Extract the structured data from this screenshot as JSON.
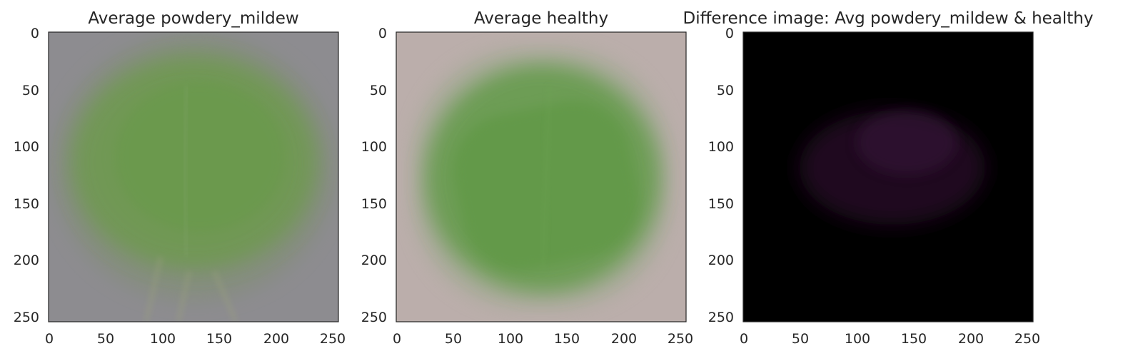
{
  "chart_data": [
    {
      "type": "image",
      "title": "Average powdery_mildew",
      "xlim": [
        0,
        255
      ],
      "ylim": [
        255,
        0
      ],
      "xticks": [
        0,
        50,
        100,
        150,
        200,
        250
      ],
      "yticks": [
        0,
        50,
        100,
        150,
        200,
        250
      ],
      "background_color": "#8d8c90",
      "subject_color": "#6e9a50",
      "grid": false
    },
    {
      "type": "image",
      "title": "Average healthy",
      "xlim": [
        0,
        255
      ],
      "ylim": [
        255,
        0
      ],
      "xticks": [
        0,
        50,
        100,
        150,
        200,
        250
      ],
      "yticks": [
        0,
        50,
        100,
        150,
        200,
        250
      ],
      "background_color": "#bbaeab",
      "subject_color": "#5f9a45",
      "grid": false
    },
    {
      "type": "image",
      "title": "Difference image: Avg powdery_mildew & healthy",
      "xlim": [
        0,
        255
      ],
      "ylim": [
        255,
        0
      ],
      "xticks": [
        0,
        50,
        100,
        150,
        200,
        250
      ],
      "yticks": [
        0,
        50,
        100,
        150,
        200,
        250
      ],
      "background_color": "#000000",
      "subject_color": "#2a0e2a",
      "grid": false
    }
  ]
}
